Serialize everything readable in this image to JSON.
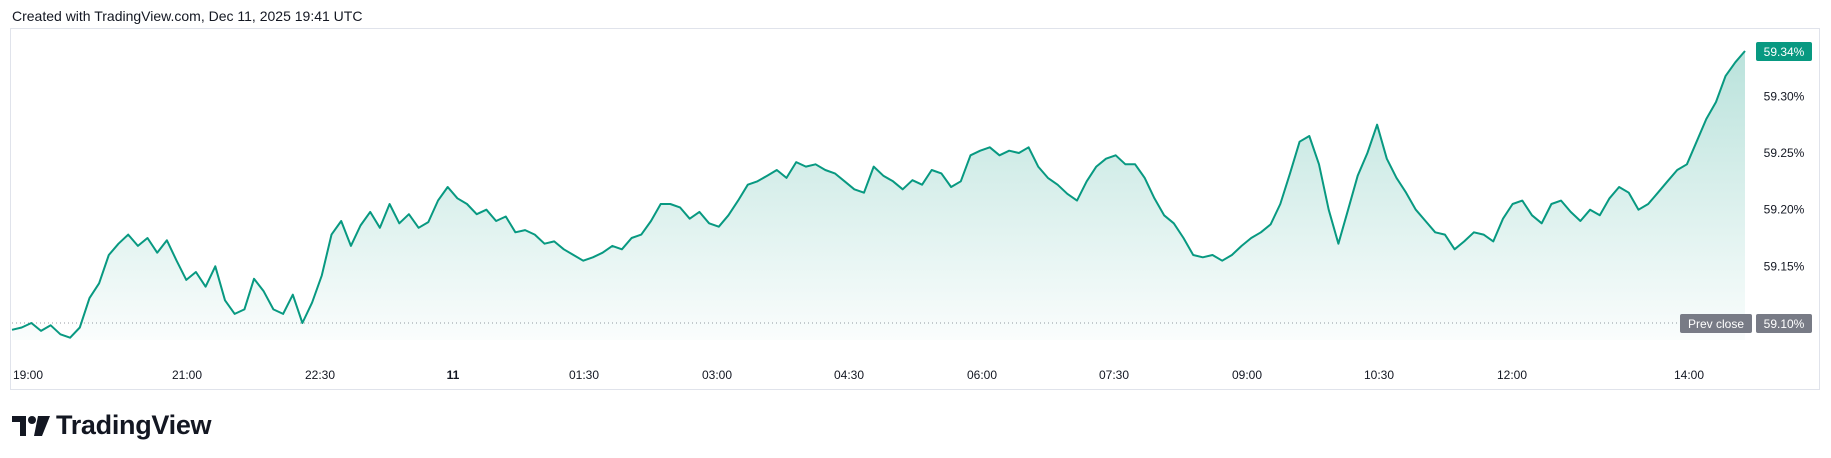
{
  "header": {
    "caption": "Created with TradingView.com, Dec 11, 2025 19:41 UTC"
  },
  "footer": {
    "brand": "TradingView",
    "logo_icon": "tradingview-logo-icon"
  },
  "colors": {
    "line": "#089981",
    "area_top": "#089981",
    "last_badge": "#089981",
    "prev_badge": "#787b86",
    "grid": "#e0e3eb",
    "text": "#131722"
  },
  "chart_data": {
    "type": "area",
    "title": "",
    "xlabel": "",
    "ylabel": "",
    "unit": "%",
    "x_ticks": [
      "19:00",
      "21:00",
      "22:30",
      "11",
      "01:30",
      "03:00",
      "04:30",
      "06:00",
      "07:30",
      "09:00",
      "10:30",
      "12:00",
      "14:00"
    ],
    "y_ticks": [
      "59.30%",
      "59.25%",
      "59.20%",
      "59.15%",
      "59.10%"
    ],
    "ylim": [
      59.085,
      59.355
    ],
    "prev_close": {
      "label": "Prev close",
      "value": "59.10%"
    },
    "last_value": "59.34%",
    "series": [
      {
        "values": [
          59.094,
          59.096,
          59.1,
          59.093,
          59.098,
          59.09,
          59.087,
          59.096,
          59.122,
          59.135,
          59.16,
          59.17,
          59.178,
          59.168,
          59.175,
          59.162,
          59.173,
          59.155,
          59.138,
          59.145,
          59.132,
          59.15,
          59.12,
          59.108,
          59.112,
          59.139,
          59.128,
          59.112,
          59.108,
          59.125,
          59.1,
          59.118,
          59.142,
          59.178,
          59.19,
          59.168,
          59.186,
          59.198,
          59.184,
          59.205,
          59.188,
          59.196,
          59.184,
          59.189,
          59.208,
          59.22,
          59.21,
          59.205,
          59.196,
          59.2,
          59.19,
          59.194,
          59.18,
          59.182,
          59.178,
          59.17,
          59.172,
          59.165,
          59.16,
          59.155,
          59.158,
          59.162,
          59.168,
          59.165,
          59.175,
          59.178,
          59.19,
          59.205,
          59.205,
          59.202,
          59.192,
          59.198,
          59.188,
          59.185,
          59.195,
          59.208,
          59.222,
          59.225,
          59.23,
          59.235,
          59.228,
          59.242,
          59.238,
          59.24,
          59.235,
          59.232,
          59.225,
          59.218,
          59.215,
          59.238,
          59.23,
          59.225,
          59.218,
          59.226,
          59.222,
          59.235,
          59.232,
          59.22,
          59.225,
          59.248,
          59.252,
          59.255,
          59.248,
          59.252,
          59.25,
          59.255,
          59.238,
          59.228,
          59.222,
          59.214,
          59.208,
          59.225,
          59.238,
          59.245,
          59.248,
          59.24,
          59.24,
          59.228,
          59.21,
          59.195,
          59.188,
          59.175,
          59.16,
          59.158,
          59.16,
          59.155,
          59.16,
          59.168,
          59.175,
          59.18,
          59.187,
          59.205,
          59.232,
          59.26,
          59.265,
          59.24,
          59.2,
          59.17,
          59.2,
          59.23,
          59.25,
          59.275,
          59.245,
          59.228,
          59.215,
          59.2,
          59.19,
          59.18,
          59.178,
          59.165,
          59.172,
          59.18,
          59.178,
          59.172,
          59.192,
          59.205,
          59.208,
          59.195,
          59.188,
          59.205,
          59.208,
          59.198,
          59.19,
          59.2,
          59.195,
          59.21,
          59.22,
          59.215,
          59.2,
          59.205,
          59.215,
          59.225,
          59.235,
          59.24,
          59.26,
          59.28,
          59.295,
          59.318,
          59.33,
          59.34
        ]
      }
    ]
  }
}
